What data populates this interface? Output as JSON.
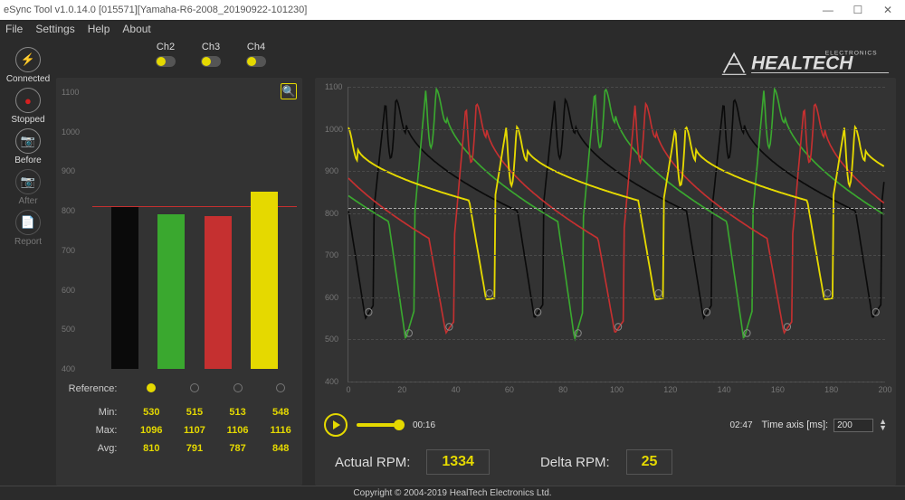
{
  "window": {
    "title": "eSync Tool v1.0.14.0 [015571][Yamaha-R6-2008_20190922-101230]"
  },
  "menu": [
    "File",
    "Settings",
    "Help",
    "About"
  ],
  "nav": [
    {
      "name": "connected",
      "label": "Connected",
      "color": "#e5d900",
      "glyph": "⚡",
      "disabled": false
    },
    {
      "name": "stopped",
      "label": "Stopped",
      "color": "#d62020",
      "glyph": "●",
      "disabled": false
    },
    {
      "name": "before",
      "label": "Before",
      "color": "#e5d900",
      "glyph": "📷",
      "disabled": false
    },
    {
      "name": "after",
      "label": "After",
      "color": "#666666",
      "glyph": "📷",
      "disabled": true
    },
    {
      "name": "report",
      "label": "Report",
      "color": "#666666",
      "glyph": "📄",
      "disabled": true
    }
  ],
  "channels": [
    {
      "label": "Ch2",
      "on": true
    },
    {
      "label": "Ch3",
      "on": true
    },
    {
      "label": "Ch4",
      "on": true
    }
  ],
  "barChart": {
    "ymin": 400,
    "ymax": 1100,
    "yticks": [
      400,
      500,
      600,
      700,
      800,
      900,
      1000,
      1100
    ],
    "refValue": 812,
    "refColor": "#c53030",
    "bars": [
      {
        "value": 810,
        "color": "#0a0a0a"
      },
      {
        "value": 791,
        "color": "#3aa82f"
      },
      {
        "value": 787,
        "color": "#c53030"
      },
      {
        "value": 848,
        "color": "#e5d900"
      }
    ],
    "zoomGlyph": "🔍"
  },
  "stats": {
    "referenceLabel": "Reference:",
    "referenceSelected": 0,
    "rows": [
      {
        "label": "Min:",
        "vals": [
          "530",
          "515",
          "513",
          "548"
        ]
      },
      {
        "label": "Max:",
        "vals": [
          "1096",
          "1107",
          "1106",
          "1116"
        ]
      },
      {
        "label": "Avg:",
        "vals": [
          "810",
          "791",
          "787",
          "848"
        ]
      }
    ]
  },
  "wave": {
    "ymin": 400,
    "ymax": 1100,
    "yticks": [
      400,
      500,
      600,
      700,
      800,
      900,
      1000,
      1100
    ],
    "xmin": 0,
    "xmax": 200,
    "xticks": [
      0,
      20,
      40,
      60,
      80,
      100,
      120,
      140,
      160,
      180,
      200
    ],
    "refY": 812,
    "series": [
      {
        "name": "ch1",
        "color": "#0a0a0a",
        "phase": 0,
        "baseline": 805,
        "spikeMin": 550,
        "spikeMax": 1070,
        "width": 1.6
      },
      {
        "name": "ch2",
        "color": "#3aa82f",
        "phase": 15,
        "baseline": 780,
        "spikeMin": 500,
        "spikeMax": 1095,
        "width": 1.6
      },
      {
        "name": "ch3",
        "color": "#c53030",
        "phase": 30,
        "baseline": 740,
        "spikeMin": 515,
        "spikeMax": 1060,
        "width": 1.6
      },
      {
        "name": "ch4",
        "color": "#e5d900",
        "phase": 45,
        "baseline": 830,
        "spikeMin": 595,
        "spikeMax": 1005,
        "width": 1.8
      }
    ],
    "period": 63
  },
  "playback": {
    "current": "00:16",
    "total": "02:47",
    "timeAxisLabel": "Time axis [ms]:",
    "timeAxisValue": "200"
  },
  "rpm": {
    "actualLabel": "Actual RPM:",
    "actualValue": "1334",
    "deltaLabel": "Delta RPM:",
    "deltaValue": "25"
  },
  "logo": {
    "brand": "HEALTECH",
    "sub": "ELECTRONICS"
  },
  "footer": "Copyright © 2004-2019 HealTech Electronics Ltd."
}
